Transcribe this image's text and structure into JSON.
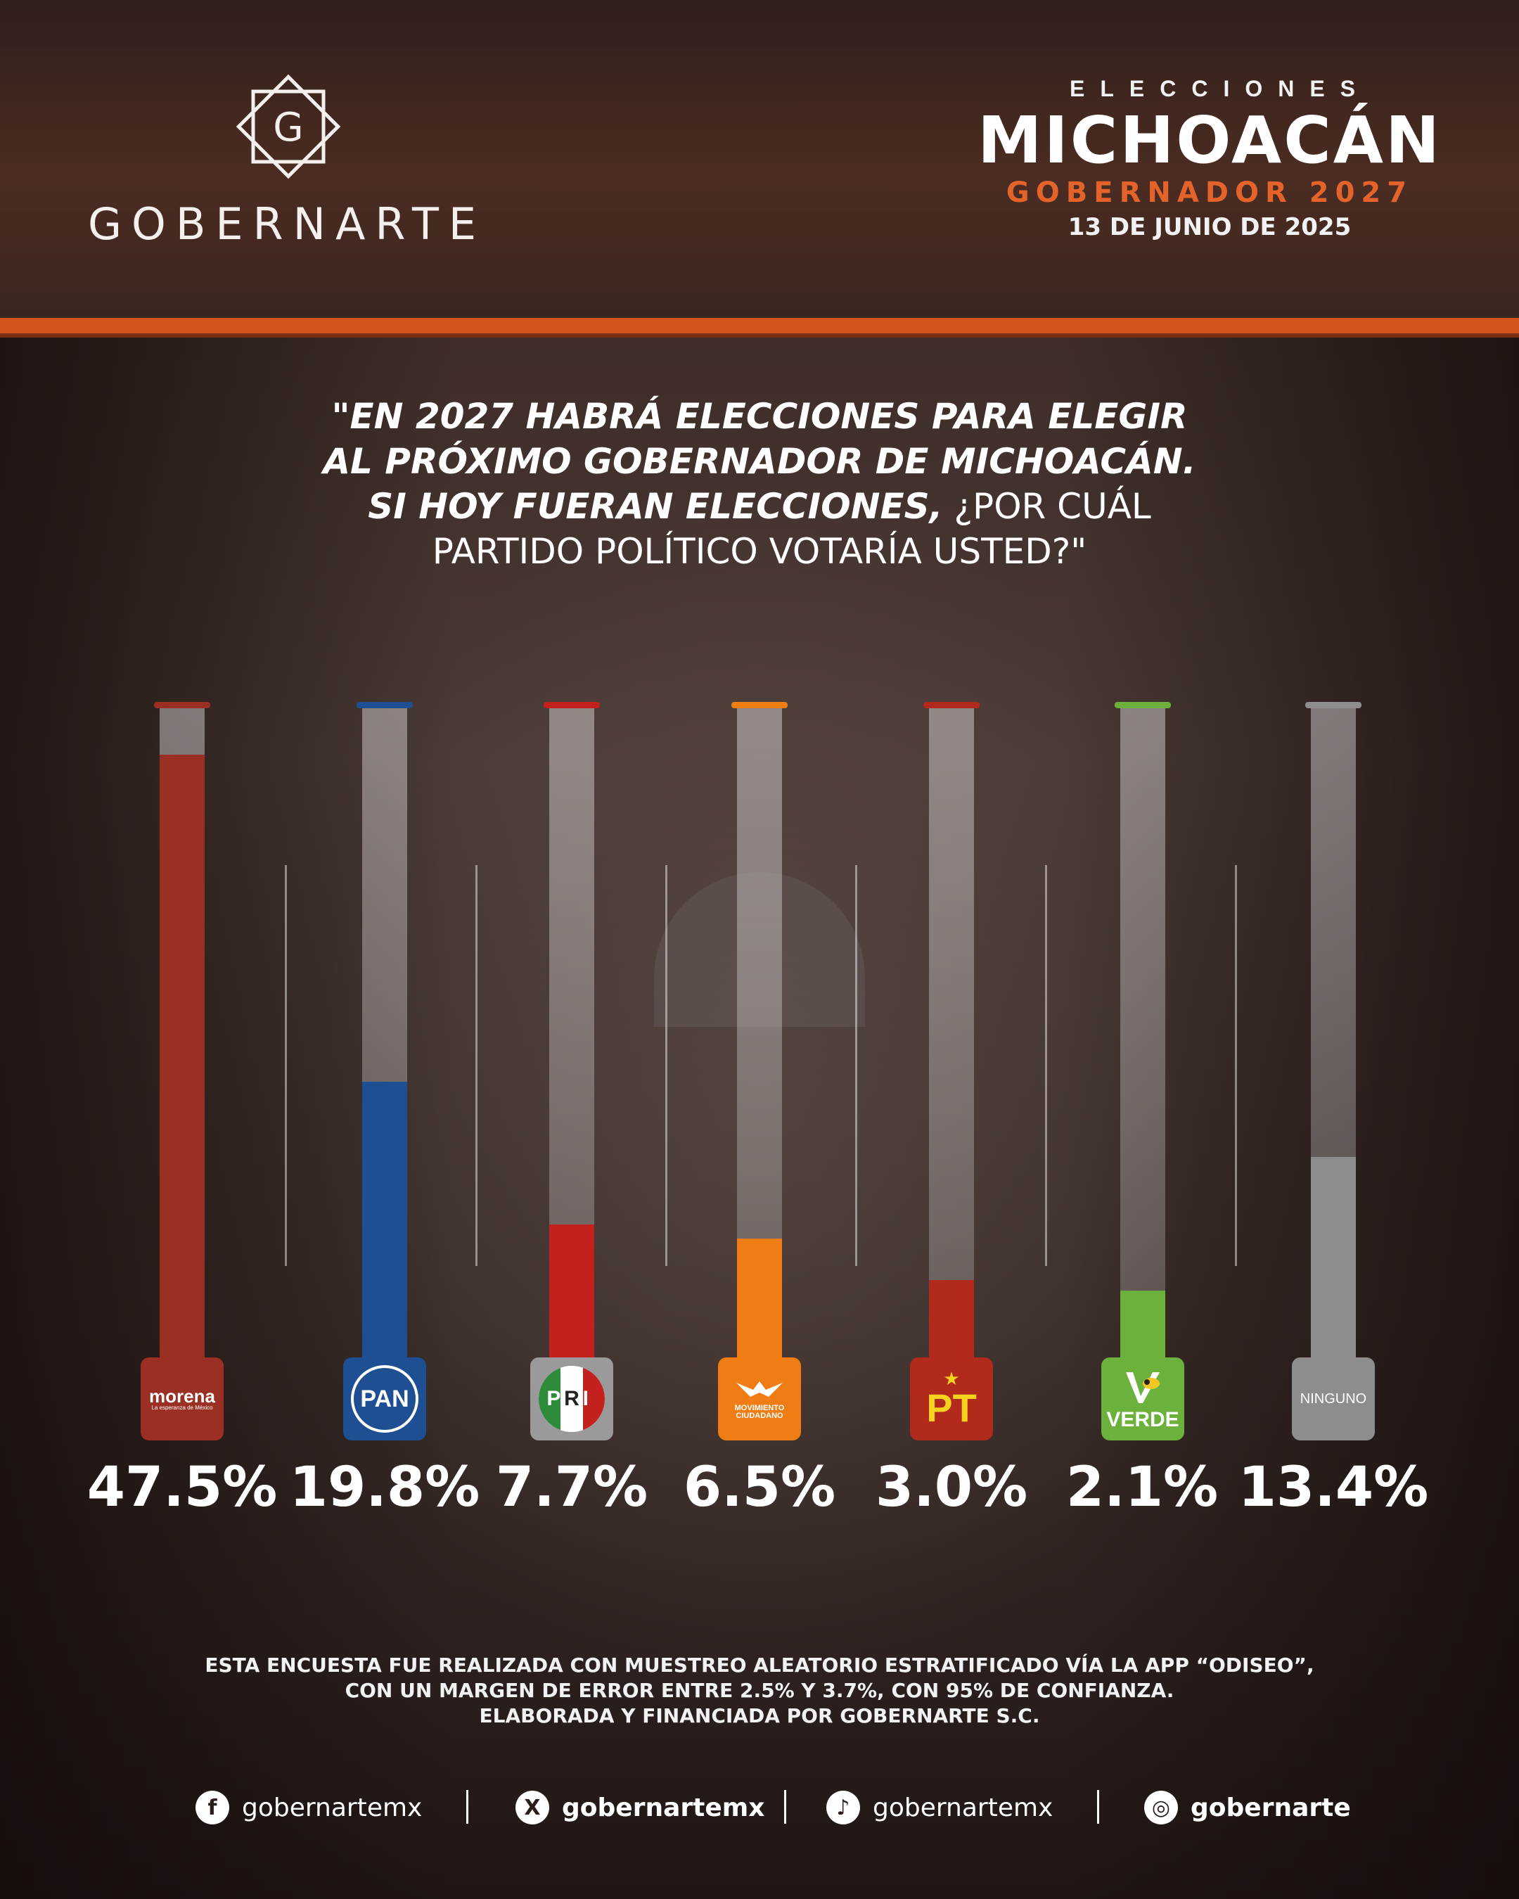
{
  "brand": {
    "name": "GOBERNARTE",
    "mark_letter": "G"
  },
  "header": {
    "kicker": "ELECCIONES",
    "state": "MICHOACÁN",
    "office": "GOBERNADOR 2027",
    "date": "13 DE JUNIO DE 2025"
  },
  "question": {
    "line1": "\"EN 2027 HABRÁ ELECCIONES PARA ELEGIR",
    "line2": "AL PRÓXIMO GOBERNADOR DE MICHOACÁN.",
    "line3_bold": "SI HOY FUERAN ELECCIONES,",
    "line3_rest": " ¿POR CUÁL",
    "line4": "PARTIDO POLÍTICO VOTARÍA USTED?\""
  },
  "chart_data": {
    "type": "bar",
    "title": "",
    "ylim": [
      0,
      55
    ],
    "categories": [
      "morena",
      "PAN",
      "PRI",
      "MOVIMIENTO CIUDADANO",
      "PT",
      "VERDE",
      "NINGUNO"
    ],
    "values": [
      47.5,
      19.8,
      7.7,
      6.5,
      3.0,
      2.1,
      13.4
    ],
    "labels": [
      "47.5%",
      "19.8%",
      "7.7%",
      "6.5%",
      "3.0%",
      "2.1%",
      "13.4%"
    ],
    "colors": [
      "#9b2f23",
      "#1f4f93",
      "#c3211e",
      "#ef7d14",
      "#b12a1c",
      "#6bb13b",
      "#8d8d8d"
    ]
  },
  "parties": {
    "morena": {
      "name": "morena",
      "slogan": "La esperanza de México"
    },
    "pan": {
      "name": "PAN"
    },
    "pri": {
      "letters": [
        "P",
        "R",
        "I"
      ]
    },
    "mc": {
      "line1": "MOVIMIENTO",
      "line2": "CIUDADANO"
    },
    "pt": {
      "name": "PT"
    },
    "verde": {
      "name": "VERDE"
    },
    "ninguno": {
      "name": "NINGUNO"
    }
  },
  "footer": {
    "line1_a": "ESTA ENCUESTA FUE REALIZADA CON MUESTREO ALEATORIO ESTRATIFICADO VÍA LA ",
    "line1_b": "APP “ODISEO”,",
    "line2_a": "CON UN MARGEN DE ERROR ENTRE 2.5% Y 3.7%, CON ",
    "line2_b": "95% DE CONFIANZA.",
    "line3_a": "ELABORADA Y FINANCIADA POR ",
    "line3_b": "GOBERNARTE S.C."
  },
  "social": {
    "facebook": {
      "icon": "facebook-icon",
      "glyph": "f",
      "handle": "gobernartemx"
    },
    "x": {
      "icon": "x-icon",
      "glyph": "X",
      "handle": "gobernartemx"
    },
    "tiktok": {
      "icon": "tiktok-icon",
      "glyph": "♪",
      "handle": "gobernartemx"
    },
    "instagram": {
      "icon": "instagram-icon",
      "glyph": "◎",
      "handle": "gobernarte"
    }
  }
}
